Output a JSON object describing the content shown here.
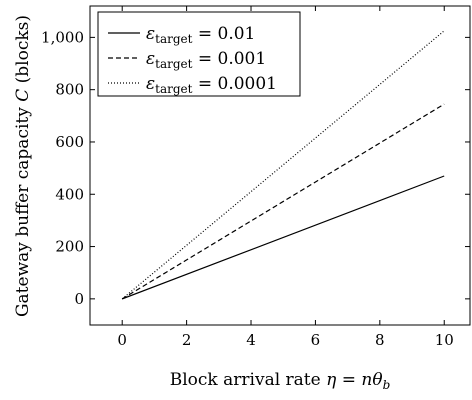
{
  "chart_data": {
    "type": "line",
    "title": "",
    "xlabel_parts": {
      "prefix": "Block arrival rate ",
      "eta": "η",
      "eq": " = ",
      "n": "n",
      "theta": "θ",
      "sub": "b"
    },
    "ylabel_parts": {
      "prefix": "Gateway buffer capacity ",
      "C": "C",
      "suffix": " (blocks)"
    },
    "xlim": [
      -1,
      10.8
    ],
    "ylim": [
      -100,
      1120
    ],
    "xticks": [
      0,
      2,
      4,
      6,
      8,
      10
    ],
    "yticks": [
      0,
      200,
      400,
      600,
      800,
      1000
    ],
    "xtick_labels": [
      "0",
      "2",
      "4",
      "6",
      "8",
      "10"
    ],
    "ytick_labels": [
      "0",
      "200",
      "400",
      "600",
      "800",
      "1,000"
    ],
    "grid": false,
    "legend_position": "top-left",
    "series": [
      {
        "name_sym": "ε",
        "name_sub": "target",
        "name_val": " = 0.01",
        "style": "solid",
        "x": [
          0,
          10
        ],
        "y": [
          0,
          470
        ]
      },
      {
        "name_sym": "ε",
        "name_sub": "target",
        "name_val": " = 0.001",
        "style": "dashed",
        "x": [
          0,
          10
        ],
        "y": [
          0,
          745
        ]
      },
      {
        "name_sym": "ε",
        "name_sub": "target",
        "name_val": " = 0.0001",
        "style": "dotted",
        "x": [
          0,
          10
        ],
        "y": [
          0,
          1025
        ]
      }
    ],
    "colors": {
      "line": "#000000",
      "axis": "#000000"
    }
  }
}
